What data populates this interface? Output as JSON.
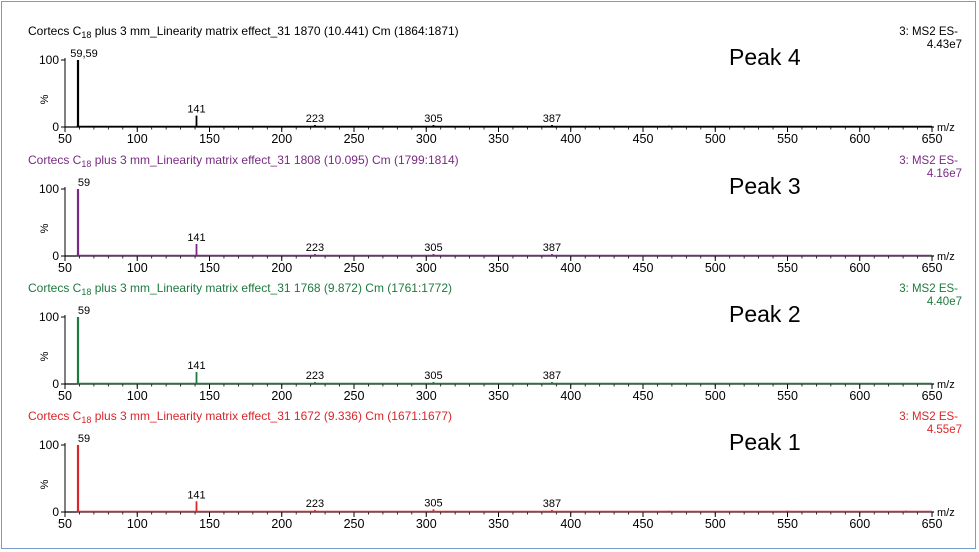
{
  "chart_data": [
    {
      "type": "bar",
      "title": {
        "pre": "Cortecs C",
        "sub": "18",
        "post": " plus 3 mm_Linearity matrix effect_31 1870 (10.441) Cm (1864:1871)"
      },
      "title_color": "#000000",
      "line_color": "#000000",
      "scan_label": "3: MS2 ES-",
      "intensity": "4.43e7",
      "peak_label": "Peak 4",
      "xlabel": "m/z",
      "xlim": [
        50,
        650
      ],
      "xticks": [
        50,
        100,
        150,
        200,
        250,
        300,
        350,
        400,
        450,
        500,
        550,
        600,
        650
      ],
      "ylim": [
        0,
        100
      ],
      "yticks": [
        0,
        100
      ],
      "ylabel": "%",
      "peaks": [
        {
          "x": 59,
          "y": 100,
          "label": "59,59"
        },
        {
          "x": 141,
          "y": 17,
          "label": "141"
        },
        {
          "x": 223,
          "y": 3,
          "label": "223"
        },
        {
          "x": 305,
          "y": 3,
          "label": "305"
        },
        {
          "x": 387,
          "y": 3,
          "label": "387"
        },
        {
          "x": 468,
          "y": 2,
          "label": ""
        },
        {
          "x": 550,
          "y": 1,
          "label": ""
        },
        {
          "x": 632,
          "y": 1,
          "label": ""
        }
      ]
    },
    {
      "type": "bar",
      "title": {
        "pre": "Cortecs C",
        "sub": "18",
        "post": " plus 3 mm_Linearity matrix effect_31 1808 (10.095) Cm (1799:1814)"
      },
      "title_color": "#7a2a82",
      "line_color": "#7a2a82",
      "scan_label": "3: MS2 ES-",
      "intensity": "4.16e7",
      "peak_label": "Peak 3",
      "xlabel": "m/z",
      "xlim": [
        50,
        650
      ],
      "xticks": [
        50,
        100,
        150,
        200,
        250,
        300,
        350,
        400,
        450,
        500,
        550,
        600,
        650
      ],
      "ylim": [
        0,
        100
      ],
      "yticks": [
        0,
        100
      ],
      "ylabel": "%",
      "peaks": [
        {
          "x": 59,
          "y": 100,
          "label": "59"
        },
        {
          "x": 141,
          "y": 18,
          "label": "141"
        },
        {
          "x": 223,
          "y": 3,
          "label": "223"
        },
        {
          "x": 305,
          "y": 3,
          "label": "305"
        },
        {
          "x": 387,
          "y": 3,
          "label": "387"
        }
      ]
    },
    {
      "type": "bar",
      "title": {
        "pre": "Cortecs C",
        "sub": "18",
        "post": " plus 3 mm_Linearity matrix effect_31 1768 (9.872) Cm (1761:1772)"
      },
      "title_color": "#1e7a3c",
      "line_color": "#1e7a3c",
      "scan_label": "3: MS2 ES-",
      "intensity": "4.40e7",
      "peak_label": "Peak 2",
      "xlabel": "m/z",
      "xlim": [
        50,
        650
      ],
      "xticks": [
        50,
        100,
        150,
        200,
        250,
        300,
        350,
        400,
        450,
        500,
        550,
        600,
        650
      ],
      "ylim": [
        0,
        100
      ],
      "yticks": [
        0,
        100
      ],
      "ylabel": "%",
      "peaks": [
        {
          "x": 59,
          "y": 100,
          "label": "59"
        },
        {
          "x": 141,
          "y": 18,
          "label": "141"
        },
        {
          "x": 223,
          "y": 3,
          "label": "223"
        },
        {
          "x": 305,
          "y": 3,
          "label": "305"
        },
        {
          "x": 387,
          "y": 3,
          "label": "387"
        },
        {
          "x": 468,
          "y": 1,
          "label": ""
        },
        {
          "x": 550,
          "y": 1,
          "label": ""
        }
      ]
    },
    {
      "type": "bar",
      "title": {
        "pre": "Cortecs C",
        "sub": "18",
        "post": " plus 3 mm_Linearity matrix effect_31 1672 (9.336) Cm (1671:1677)"
      },
      "title_color": "#d8262a",
      "line_color": "#d8262a",
      "scan_label": "3: MS2 ES-",
      "intensity": "4.55e7",
      "peak_label": "Peak 1",
      "xlabel": "m/z",
      "xlim": [
        50,
        650
      ],
      "xticks": [
        50,
        100,
        150,
        200,
        250,
        300,
        350,
        400,
        450,
        500,
        550,
        600,
        650
      ],
      "ylim": [
        0,
        100
      ],
      "yticks": [
        0,
        100
      ],
      "ylabel": "%",
      "peaks": [
        {
          "x": 59,
          "y": 100,
          "label": "59"
        },
        {
          "x": 141,
          "y": 16,
          "label": "141"
        },
        {
          "x": 223,
          "y": 3,
          "label": "223"
        },
        {
          "x": 305,
          "y": 4,
          "label": "305"
        },
        {
          "x": 387,
          "y": 3,
          "label": "387"
        },
        {
          "x": 468,
          "y": 2,
          "label": ""
        },
        {
          "x": 550,
          "y": 2,
          "label": ""
        },
        {
          "x": 632,
          "y": 2,
          "label": ""
        }
      ]
    }
  ]
}
